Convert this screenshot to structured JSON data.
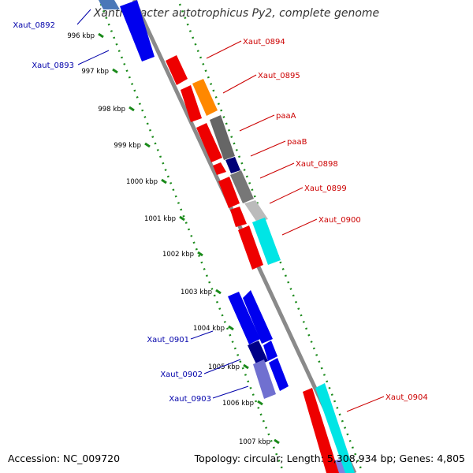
{
  "title": "Xanthobacter autotrophicus Py2, complete genome",
  "footer": {
    "accession": "Accession: NC_009720",
    "summary": "Topology: circular; Length: 5,308,934 bp; Genes: 4,805"
  },
  "colors": {
    "forward_label": "#cc0000",
    "reverse_label": "#0000aa",
    "tick": "#1a8a1a",
    "backbone": "#888888"
  },
  "ticks": [
    "996 kbp",
    "997 kbp",
    "998 kbp",
    "999 kbp",
    "1000 kbp",
    "1001 kbp",
    "1002 kbp",
    "1003 kbp",
    "1004 kbp",
    "1005 kbp",
    "1006 kbp",
    "1007 kbp"
  ],
  "labels": [
    {
      "name": "Xaut_0892",
      "side": "left"
    },
    {
      "name": "Xaut_0893",
      "side": "left"
    },
    {
      "name": "Xaut_0894",
      "side": "right"
    },
    {
      "name": "Xaut_0895",
      "side": "right"
    },
    {
      "name": "paaA",
      "side": "right"
    },
    {
      "name": "paaB",
      "side": "right"
    },
    {
      "name": "Xaut_0898",
      "side": "right"
    },
    {
      "name": "Xaut_0899",
      "side": "right"
    },
    {
      "name": "Xaut_0900",
      "side": "right"
    },
    {
      "name": "Xaut_0901",
      "side": "left"
    },
    {
      "name": "Xaut_0902",
      "side": "left"
    },
    {
      "name": "Xaut_0903",
      "side": "left"
    },
    {
      "name": "Xaut_0904",
      "side": "right"
    }
  ]
}
